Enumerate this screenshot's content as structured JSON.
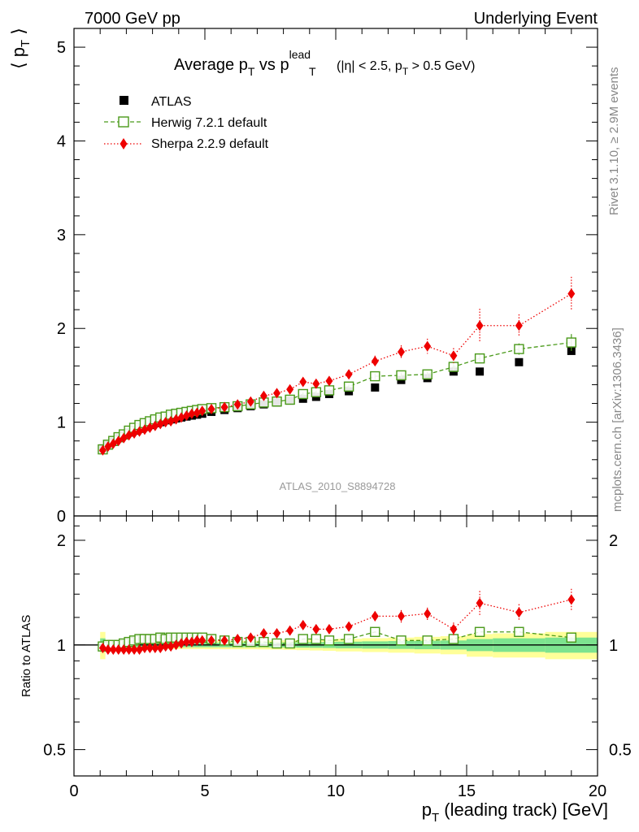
{
  "header": {
    "left": "7000 GeV pp",
    "right": "Underlying Event"
  },
  "side_labels": {
    "rivet": "Rivet 3.1.10, ≥ 2.9M events",
    "mcplots": "mcplots.cern.ch [arXiv:1306.3436]"
  },
  "chart_data": [
    {
      "type": "scatter",
      "panel": "main",
      "title_parts": {
        "a": "Average p",
        "a_sub": "T",
        "b": " vs p",
        "b_sup": "lead",
        "b_sub": "T",
        "c": " (|η| < 2.5, p",
        "c_sub": "T",
        "d": " > 0.5 GeV)"
      },
      "ylabel": "⟨ p",
      "ylabel_sub": "T",
      "ylabel_end": " ⟩",
      "ylim": [
        0,
        5.2
      ],
      "yticks": [
        0,
        1,
        2,
        3,
        4,
        5
      ],
      "ytick_labels": [
        "0",
        "1",
        "2",
        "3",
        "4",
        "5"
      ],
      "xlim": [
        0,
        20
      ],
      "watermark": "ATLAS_2010_S8894728",
      "legend_position": "top-left",
      "series": [
        {
          "name": "ATLAS",
          "style": "square-filled",
          "color": "#000000",
          "x": [
            1.1,
            1.3,
            1.5,
            1.7,
            1.9,
            2.1,
            2.3,
            2.5,
            2.7,
            2.9,
            3.1,
            3.3,
            3.5,
            3.7,
            3.9,
            4.1,
            4.3,
            4.5,
            4.7,
            4.9,
            5.25,
            5.75,
            6.25,
            6.75,
            7.25,
            7.75,
            8.25,
            8.75,
            9.25,
            9.75,
            10.5,
            11.5,
            12.5,
            13.5,
            14.5,
            15.5,
            17.0,
            19.0
          ],
          "y": [
            0.72,
            0.76,
            0.79,
            0.83,
            0.86,
            0.89,
            0.91,
            0.93,
            0.95,
            0.97,
            0.99,
            1.0,
            1.02,
            1.03,
            1.04,
            1.05,
            1.06,
            1.07,
            1.08,
            1.09,
            1.11,
            1.13,
            1.15,
            1.17,
            1.19,
            1.21,
            1.23,
            1.25,
            1.27,
            1.3,
            1.33,
            1.37,
            1.45,
            1.47,
            1.54,
            1.54,
            1.64,
            1.76
          ]
        },
        {
          "name": "Herwig 7.2.1 default",
          "style": "square-open-dashed",
          "color": "#4a9a1a",
          "x": [
            1.1,
            1.3,
            1.5,
            1.7,
            1.9,
            2.1,
            2.3,
            2.5,
            2.7,
            2.9,
            3.1,
            3.3,
            3.5,
            3.7,
            3.9,
            4.1,
            4.3,
            4.5,
            4.7,
            4.9,
            5.25,
            5.75,
            6.25,
            6.75,
            7.25,
            7.75,
            8.25,
            8.75,
            9.25,
            9.75,
            10.5,
            11.5,
            12.5,
            13.5,
            14.5,
            15.5,
            17.0,
            19.0
          ],
          "y": [
            0.71,
            0.76,
            0.8,
            0.84,
            0.87,
            0.91,
            0.94,
            0.97,
            0.99,
            1.01,
            1.03,
            1.05,
            1.06,
            1.08,
            1.09,
            1.1,
            1.11,
            1.12,
            1.13,
            1.14,
            1.15,
            1.16,
            1.17,
            1.19,
            1.21,
            1.22,
            1.24,
            1.3,
            1.32,
            1.34,
            1.38,
            1.49,
            1.5,
            1.51,
            1.59,
            1.68,
            1.78,
            1.85
          ],
          "yerr": [
            0.01,
            0.01,
            0.01,
            0.01,
            0.01,
            0.01,
            0.01,
            0.01,
            0.01,
            0.01,
            0.01,
            0.01,
            0.01,
            0.01,
            0.01,
            0.01,
            0.01,
            0.01,
            0.01,
            0.01,
            0.01,
            0.01,
            0.01,
            0.01,
            0.01,
            0.01,
            0.01,
            0.02,
            0.02,
            0.02,
            0.02,
            0.03,
            0.03,
            0.03,
            0.04,
            0.05,
            0.06,
            0.09
          ]
        },
        {
          "name": "Sherpa 2.2.9 default",
          "style": "diamond-filled-dotted",
          "color": "#ee0000",
          "x": [
            1.1,
            1.3,
            1.5,
            1.7,
            1.9,
            2.1,
            2.3,
            2.5,
            2.7,
            2.9,
            3.1,
            3.3,
            3.5,
            3.7,
            3.9,
            4.1,
            4.3,
            4.5,
            4.7,
            4.9,
            5.25,
            5.75,
            6.25,
            6.75,
            7.25,
            7.75,
            8.25,
            8.75,
            9.25,
            9.75,
            10.5,
            11.5,
            12.5,
            13.5,
            14.5,
            15.5,
            17.0,
            19.0
          ],
          "y": [
            0.7,
            0.74,
            0.77,
            0.8,
            0.83,
            0.86,
            0.88,
            0.9,
            0.92,
            0.94,
            0.96,
            0.98,
            1.0,
            1.01,
            1.03,
            1.05,
            1.07,
            1.09,
            1.1,
            1.12,
            1.14,
            1.16,
            1.19,
            1.22,
            1.28,
            1.31,
            1.35,
            1.43,
            1.41,
            1.44,
            1.51,
            1.65,
            1.75,
            1.81,
            1.71,
            2.03,
            2.03,
            2.37
          ],
          "yerr": [
            0.01,
            0.01,
            0.01,
            0.01,
            0.01,
            0.01,
            0.01,
            0.01,
            0.01,
            0.01,
            0.01,
            0.01,
            0.01,
            0.01,
            0.01,
            0.01,
            0.01,
            0.01,
            0.01,
            0.01,
            0.02,
            0.02,
            0.02,
            0.02,
            0.03,
            0.03,
            0.03,
            0.04,
            0.04,
            0.04,
            0.05,
            0.06,
            0.07,
            0.08,
            0.08,
            0.18,
            0.12,
            0.18
          ]
        }
      ]
    },
    {
      "type": "scatter",
      "panel": "ratio",
      "ylabel": "Ratio to ATLAS",
      "xlabel": "p",
      "xlabel_sub": "T",
      "xlabel_end": " (leading track) [GeV]",
      "xlim": [
        0,
        20
      ],
      "xticks": [
        0,
        5,
        10,
        15,
        20
      ],
      "xtick_labels": [
        "0",
        "5",
        "10",
        "15",
        "20"
      ],
      "ylim": [
        0.42,
        2.35
      ],
      "y_scale": "log",
      "yticks": [
        0.5,
        1,
        2
      ],
      "ytick_labels": [
        "0.5",
        "1",
        "2"
      ],
      "bands": {
        "x_edges": [
          1.0,
          1.2,
          1.4,
          1.6,
          1.8,
          2.0,
          2.2,
          2.4,
          2.6,
          2.8,
          3.0,
          3.2,
          3.4,
          3.6,
          3.8,
          4.0,
          4.2,
          4.4,
          4.6,
          4.8,
          5.0,
          5.5,
          6.0,
          6.5,
          7.0,
          7.5,
          8.0,
          8.5,
          9.0,
          9.5,
          10.0,
          11.0,
          12.0,
          13.0,
          14.0,
          15.0,
          16.0,
          18.0,
          20.0
        ],
        "green_halfwidth": [
          0.045,
          0.02,
          0.018,
          0.016,
          0.015,
          0.015,
          0.015,
          0.015,
          0.015,
          0.015,
          0.015,
          0.015,
          0.015,
          0.015,
          0.015,
          0.015,
          0.015,
          0.015,
          0.015,
          0.015,
          0.015,
          0.015,
          0.015,
          0.015,
          0.015,
          0.016,
          0.017,
          0.018,
          0.019,
          0.02,
          0.022,
          0.024,
          0.026,
          0.028,
          0.03,
          0.04,
          0.045,
          0.05
        ],
        "yellow_halfwidth": [
          0.09,
          0.035,
          0.03,
          0.028,
          0.027,
          0.027,
          0.027,
          0.027,
          0.027,
          0.027,
          0.027,
          0.027,
          0.027,
          0.027,
          0.027,
          0.027,
          0.027,
          0.027,
          0.027,
          0.027,
          0.028,
          0.028,
          0.028,
          0.028,
          0.029,
          0.03,
          0.032,
          0.034,
          0.036,
          0.038,
          0.042,
          0.046,
          0.05,
          0.055,
          0.06,
          0.075,
          0.08,
          0.09
        ],
        "green_color": "#7de38f",
        "yellow_color": "#ffff99"
      },
      "series": [
        {
          "name": "Herwig 7.2.1 default",
          "x": [
            1.1,
            1.3,
            1.5,
            1.7,
            1.9,
            2.1,
            2.3,
            2.5,
            2.7,
            2.9,
            3.1,
            3.3,
            3.5,
            3.7,
            3.9,
            4.1,
            4.3,
            4.5,
            4.7,
            4.9,
            5.25,
            5.75,
            6.25,
            6.75,
            7.25,
            7.75,
            8.25,
            8.75,
            9.25,
            9.75,
            10.5,
            11.5,
            12.5,
            13.5,
            14.5,
            15.5,
            17.0,
            19.0
          ],
          "y": [
            0.99,
            1.0,
            1.0,
            1.0,
            1.01,
            1.02,
            1.03,
            1.04,
            1.04,
            1.04,
            1.04,
            1.05,
            1.04,
            1.05,
            1.05,
            1.05,
            1.05,
            1.05,
            1.05,
            1.05,
            1.04,
            1.03,
            1.02,
            1.02,
            1.02,
            1.01,
            1.01,
            1.04,
            1.04,
            1.03,
            1.04,
            1.09,
            1.03,
            1.03,
            1.04,
            1.09,
            1.09,
            1.05
          ]
        },
        {
          "name": "Sherpa 2.2.9 default",
          "x": [
            1.1,
            1.3,
            1.5,
            1.7,
            1.9,
            2.1,
            2.3,
            2.5,
            2.7,
            2.9,
            3.1,
            3.3,
            3.5,
            3.7,
            3.9,
            4.1,
            4.3,
            4.5,
            4.7,
            4.9,
            5.25,
            5.75,
            6.25,
            6.75,
            7.25,
            7.75,
            8.25,
            8.75,
            9.25,
            9.75,
            10.5,
            11.5,
            12.5,
            13.5,
            14.5,
            15.5,
            17.0,
            19.0
          ],
          "y": [
            0.98,
            0.97,
            0.97,
            0.97,
            0.97,
            0.97,
            0.97,
            0.97,
            0.98,
            0.98,
            0.98,
            0.98,
            0.99,
            0.99,
            1.0,
            1.01,
            1.02,
            1.02,
            1.03,
            1.03,
            1.03,
            1.03,
            1.04,
            1.05,
            1.08,
            1.08,
            1.1,
            1.14,
            1.11,
            1.11,
            1.13,
            1.21,
            1.21,
            1.23,
            1.11,
            1.32,
            1.24,
            1.35
          ],
          "yerr": [
            0.01,
            0.01,
            0.01,
            0.01,
            0.01,
            0.01,
            0.01,
            0.01,
            0.01,
            0.01,
            0.01,
            0.01,
            0.01,
            0.01,
            0.01,
            0.01,
            0.01,
            0.01,
            0.01,
            0.01,
            0.01,
            0.01,
            0.01,
            0.01,
            0.02,
            0.02,
            0.02,
            0.03,
            0.03,
            0.03,
            0.03,
            0.04,
            0.05,
            0.05,
            0.05,
            0.11,
            0.07,
            0.1
          ]
        }
      ]
    }
  ]
}
